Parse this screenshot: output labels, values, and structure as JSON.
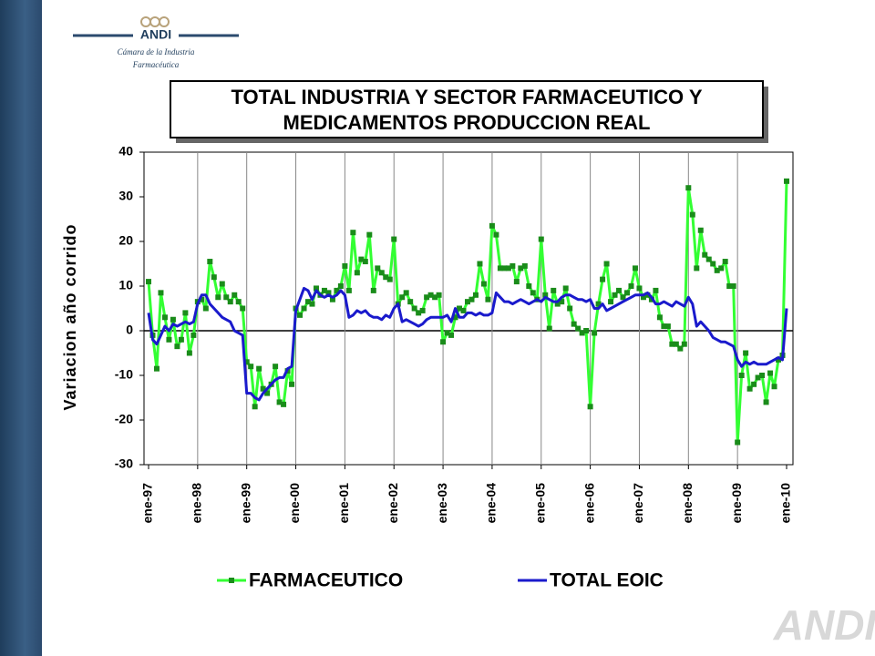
{
  "logo": {
    "brand": "ANDI",
    "line1": "Cámara de la Industria",
    "line2": "Farmacéutica",
    "watermark": "ANDI"
  },
  "chart_data": {
    "type": "line",
    "title_lines": [
      "TOTAL INDUSTRIA Y SECTOR FARMACEUTICO Y",
      "MEDICAMENTOS PRODUCCION REAL"
    ],
    "y_label": "Variacion  año corrido",
    "categories": [
      "ene-97",
      null,
      null,
      null,
      null,
      null,
      null,
      null,
      null,
      null,
      null,
      null,
      "ene-98",
      null,
      null,
      null,
      null,
      null,
      null,
      null,
      null,
      null,
      null,
      null,
      "ene-99",
      null,
      null,
      null,
      null,
      null,
      null,
      null,
      null,
      null,
      null,
      null,
      "ene-00",
      null,
      null,
      null,
      null,
      null,
      null,
      null,
      null,
      null,
      null,
      null,
      "ene-01",
      null,
      null,
      null,
      null,
      null,
      null,
      null,
      null,
      null,
      null,
      null,
      "ene-02",
      null,
      null,
      null,
      null,
      null,
      null,
      null,
      null,
      null,
      null,
      null,
      "ene-03",
      null,
      null,
      null,
      null,
      null,
      null,
      null,
      null,
      null,
      null,
      null,
      "ene-04",
      null,
      null,
      null,
      null,
      null,
      null,
      null,
      null,
      null,
      null,
      null,
      "ene-05",
      null,
      null,
      null,
      null,
      null,
      null,
      null,
      null,
      null,
      null,
      null,
      "ene-06",
      null,
      null,
      null,
      null,
      null,
      null,
      null,
      null,
      null,
      null,
      null,
      "ene-07",
      null,
      null,
      null,
      null,
      null,
      null,
      null,
      null,
      null,
      null,
      null,
      "ene-08",
      null,
      null,
      null,
      null,
      null,
      null,
      null,
      null,
      null,
      null,
      null,
      "ene-09",
      null,
      null,
      null,
      null,
      null,
      null,
      null,
      null,
      null,
      null,
      null,
      "ene-10"
    ],
    "series": [
      {
        "name": "FARMACEUTICO",
        "color": "#33ff33",
        "marker_color": "#1a8c1a",
        "values": [
          11,
          -1,
          -8.5,
          8.5,
          3,
          -2,
          2.5,
          -3.5,
          -2,
          4,
          -5,
          -1,
          6.5,
          7,
          5,
          15.5,
          12,
          7.5,
          10.5,
          7.5,
          6.5,
          8,
          6.5,
          5,
          -7,
          -8,
          -17,
          -8.5,
          -13,
          -14,
          -12,
          -8,
          -16,
          -16.5,
          -9,
          -12,
          5,
          3.5,
          5,
          6.5,
          6,
          9.5,
          8,
          9,
          8.5,
          7,
          9,
          10,
          14.5,
          9,
          22,
          13,
          16,
          15.5,
          21.5,
          9,
          14,
          13,
          12,
          11.5,
          20.5,
          6,
          7.5,
          8.5,
          6.5,
          5,
          4,
          4.5,
          7.5,
          8,
          7.5,
          8,
          -2.5,
          -0.5,
          -1,
          3,
          5,
          4.5,
          6.5,
          7,
          8,
          15,
          10.5,
          7,
          23.5,
          21.5,
          14,
          14,
          14,
          14.5,
          11,
          14,
          14.5,
          10,
          8.5,
          7,
          20.5,
          8,
          0.5,
          9,
          6,
          6.5,
          9.5,
          5,
          1.5,
          0.5,
          -0.5,
          0,
          -17,
          -0.5,
          6,
          11.5,
          15,
          6.5,
          8,
          9,
          7.5,
          8.5,
          10,
          14,
          9.5,
          7.5,
          8,
          7,
          9,
          3,
          1,
          1,
          -3,
          -3,
          -4,
          -3,
          32,
          26,
          14,
          22.5,
          17,
          16,
          15,
          13.5,
          14,
          15.5,
          10,
          10,
          -25,
          -10,
          -5,
          -13,
          -12,
          -10.5,
          -10,
          -16,
          -9.5,
          -12.5,
          -6.5,
          -5.5,
          33.5
        ]
      },
      {
        "name": "TOTAL EOIC",
        "color": "#1a1acc",
        "values": [
          4,
          -2,
          -3,
          -1,
          1,
          0,
          1.5,
          1,
          1.5,
          2,
          1.5,
          2,
          6,
          8,
          8,
          6,
          5,
          4,
          3,
          2.5,
          2,
          0,
          -0.5,
          -1,
          -14,
          -14,
          -15,
          -15.5,
          -14,
          -13,
          -12,
          -11,
          -10.5,
          -10.5,
          -8.5,
          -8,
          4.5,
          7,
          9.5,
          9,
          7,
          9,
          8,
          7.5,
          8,
          7.5,
          8,
          9,
          8,
          3,
          3.5,
          4.5,
          4,
          4.5,
          3.5,
          3,
          3,
          2.5,
          3.5,
          3,
          5,
          6,
          2,
          2.5,
          2,
          1.5,
          1,
          1.5,
          2.5,
          3,
          3,
          3,
          3,
          3.5,
          2,
          5,
          3,
          3,
          4,
          4,
          3.5,
          4,
          3.5,
          3.5,
          4,
          8.5,
          7.5,
          6.5,
          6.5,
          6,
          6.5,
          7,
          6.5,
          6,
          6.5,
          7,
          6.5,
          7.5,
          7,
          6.5,
          6.5,
          7.5,
          8,
          8,
          7.5,
          7,
          7,
          6.5,
          7,
          5,
          5,
          6,
          4.5,
          5,
          5.5,
          6,
          6.5,
          7,
          7.5,
          8,
          8,
          8,
          8.5,
          7.5,
          6,
          6,
          6.5,
          6,
          5.5,
          6.5,
          6,
          5.5,
          7.5,
          6,
          1,
          2,
          1,
          0,
          -1.5,
          -2,
          -2.5,
          -2.5,
          -3,
          -3.5,
          -6.5,
          -8,
          -7,
          -7.5,
          -7,
          -7.5,
          -7.5,
          -7.5,
          -7,
          -6.5,
          -6,
          -6.5,
          5
        ]
      }
    ],
    "ylim": [
      -30,
      40
    ],
    "yticks": [
      -30,
      -20,
      -10,
      0,
      10,
      20,
      30,
      40
    ],
    "grid": "x",
    "legend": "bottom"
  }
}
